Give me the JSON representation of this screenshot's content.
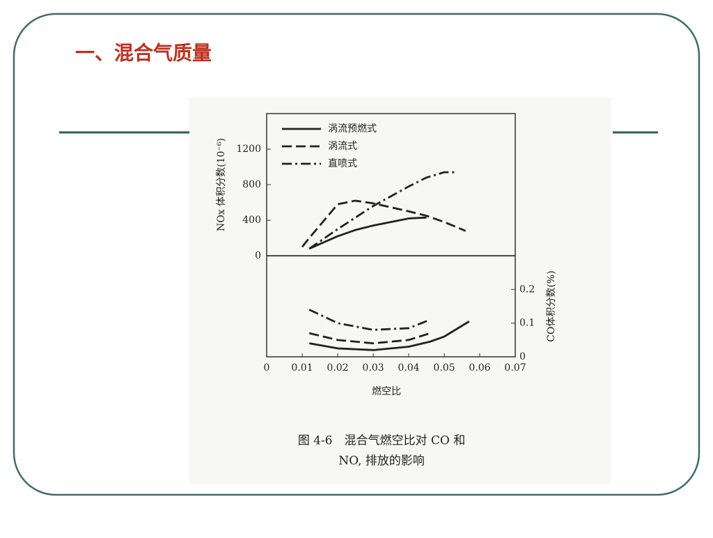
{
  "slide": {
    "title": "一、混合气质量"
  },
  "chart_data": [
    {
      "type": "line",
      "ylabel": "NOx 体积分数(10⁻⁶)",
      "ylim": [
        0,
        1600
      ],
      "yticks": [
        0,
        400,
        800,
        1200
      ],
      "xlim": [
        0,
        0.07
      ],
      "grid": false,
      "legend": "upper-left",
      "x": [
        0.01,
        0.012,
        0.02,
        0.025,
        0.03,
        0.04,
        0.045,
        0.05,
        0.053,
        0.056
      ],
      "series": [
        {
          "name": "涡流预燃式",
          "color": "#222222",
          "dash": "solid",
          "values": [
            null,
            80,
            220,
            290,
            340,
            420,
            430,
            null,
            null,
            null
          ]
        },
        {
          "name": "涡流式",
          "color": "#222222",
          "dash": "dashed",
          "values": [
            100,
            200,
            580,
            620,
            590,
            500,
            450,
            380,
            330,
            280
          ]
        },
        {
          "name": "直喷式",
          "color": "#222222",
          "dash": "dashdot",
          "values": [
            null,
            80,
            300,
            430,
            560,
            780,
            880,
            940,
            940,
            null
          ]
        }
      ]
    },
    {
      "type": "line",
      "ylabel": "CO体积分数(%)",
      "y_axis_side": "right",
      "ylim": [
        0,
        0.3
      ],
      "yticks": [
        0,
        0.1,
        0.2
      ],
      "xlim": [
        0,
        0.07
      ],
      "xticks": [
        0,
        0.01,
        0.02,
        0.03,
        0.04,
        0.05,
        0.06,
        0.07
      ],
      "xlabel": "燃空比",
      "grid": false,
      "x": [
        0.012,
        0.02,
        0.03,
        0.04,
        0.046,
        0.05,
        0.057
      ],
      "series": [
        {
          "color": "#222222",
          "dash": "solid",
          "values": [
            0.04,
            0.025,
            0.02,
            0.03,
            0.045,
            0.06,
            0.105
          ]
        },
        {
          "color": "#222222",
          "dash": "dashed",
          "values": [
            0.07,
            0.05,
            0.04,
            0.05,
            0.07,
            null,
            null
          ]
        },
        {
          "color": "#222222",
          "dash": "dashdot",
          "values": [
            0.14,
            0.1,
            0.08,
            0.085,
            0.11,
            null,
            null
          ]
        }
      ]
    }
  ],
  "caption": [
    "图 4-6　混合气燃空比对 CO 和",
    "NO, 排放的影响"
  ]
}
